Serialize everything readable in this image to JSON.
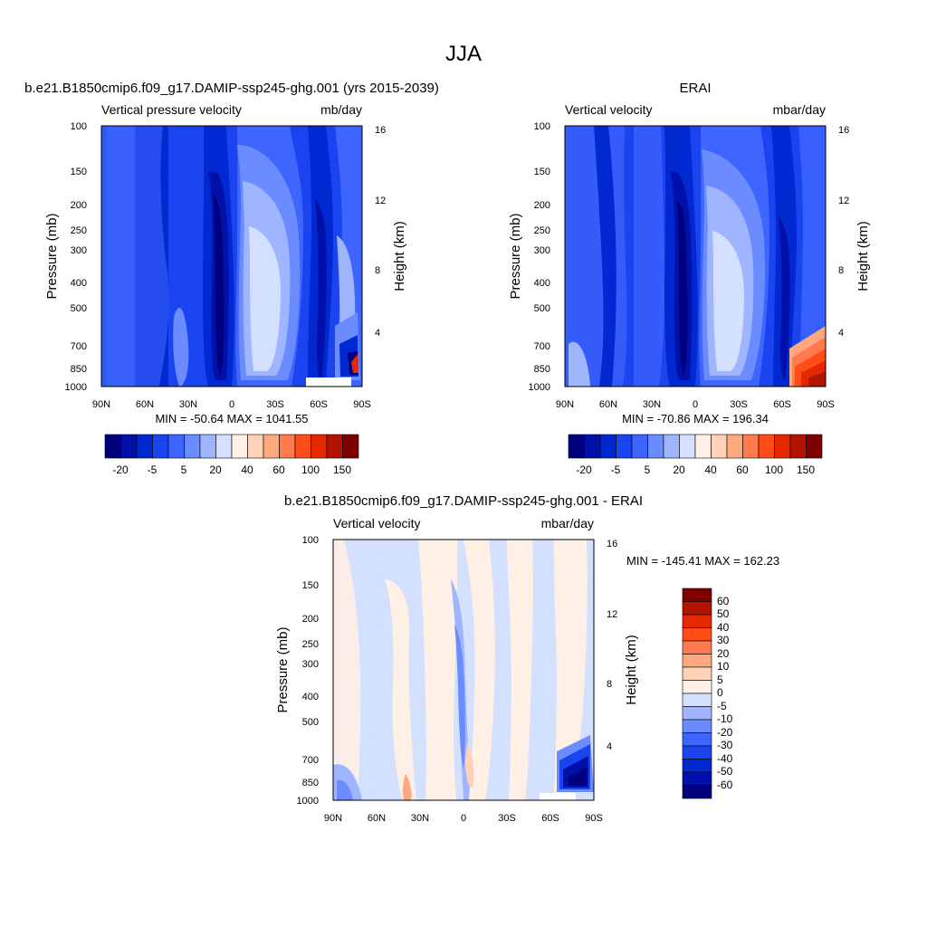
{
  "figure_title": "JJA",
  "chart_data": [
    {
      "type": "heatmap",
      "title": "b.e21.B1850cmip6.f09_g17.DAMIP-ssp245-ghg.001 (yrs 2015-2039)",
      "left_label": "Vertical pressure velocity",
      "right_label": "mb/day",
      "ylabel": "Pressure (mb)",
      "y2label": "Height (km)",
      "x_ticks": [
        "90N",
        "60N",
        "30N",
        "0",
        "30S",
        "60S",
        "90S"
      ],
      "y_ticks": [
        "100",
        "150",
        "200",
        "250",
        "300",
        "400",
        "500",
        "700",
        "850",
        "1000"
      ],
      "y2_ticks": [
        "16",
        "12",
        "8",
        "4"
      ],
      "stats": "MIN = -50.64  MAX = 1041.55",
      "colorbar_labels": [
        "-20",
        "-5",
        "5",
        "20",
        "40",
        "60",
        "100",
        "150"
      ],
      "colorbar_colors": [
        "#00007f",
        "#0010a8",
        "#0029d1",
        "#1a44f0",
        "#3e66ff",
        "#6a8cff",
        "#9fb5ff",
        "#d3e0ff",
        "#fff0e5",
        "#ffd1b8",
        "#ffa880",
        "#ff7a4d",
        "#ff4d1a",
        "#e62800",
        "#b31400",
        "#7f0000"
      ],
      "field_note": "strong negative (blue) minimum near 10N, weaker negative band around 20S, positive values near 70-90S lower levels"
    },
    {
      "type": "heatmap",
      "title": "ERAI",
      "left_label": "Vertical velocity",
      "right_label": "mbar/day",
      "ylabel": "Pressure (mb)",
      "y2label": "Height (km)",
      "x_ticks": [
        "90N",
        "60N",
        "30N",
        "0",
        "30S",
        "60S",
        "90S"
      ],
      "y_ticks": [
        "100",
        "150",
        "200",
        "250",
        "300",
        "400",
        "500",
        "700",
        "850",
        "1000"
      ],
      "y2_ticks": [
        "16",
        "12",
        "8",
        "4"
      ],
      "stats": "MIN = -70.86  MAX = 196.34",
      "colorbar_labels": [
        "-20",
        "-5",
        "5",
        "20",
        "40",
        "60",
        "100",
        "150"
      ],
      "colorbar_colors": [
        "#00007f",
        "#0010a8",
        "#0029d1",
        "#1a44f0",
        "#3e66ff",
        "#6a8cff",
        "#9fb5ff",
        "#d3e0ff",
        "#fff0e5",
        "#ffd1b8",
        "#ffa880",
        "#ff7a4d",
        "#ff4d1a",
        "#e62800",
        "#b31400",
        "#7f0000"
      ]
    },
    {
      "type": "heatmap",
      "title": "b.e21.B1850cmip6.f09_g17.DAMIP-ssp245-ghg.001 - ERAI",
      "left_label": "Vertical velocity",
      "right_label": "mbar/day",
      "ylabel": "Pressure (mb)",
      "y2label": "Height (km)",
      "x_ticks": [
        "90N",
        "60N",
        "30N",
        "0",
        "30S",
        "60S",
        "90S"
      ],
      "y_ticks": [
        "100",
        "150",
        "200",
        "250",
        "300",
        "400",
        "500",
        "700",
        "850",
        "1000"
      ],
      "y2_ticks": [
        "16",
        "12",
        "8",
        "4"
      ],
      "stats": "MIN = -145.41  MAX = 162.23",
      "colorbar_labels": [
        "60",
        "50",
        "40",
        "30",
        "20",
        "10",
        "5",
        "0",
        "-5",
        "-10",
        "-20",
        "-30",
        "-40",
        "-50",
        "-60"
      ],
      "colorbar_colors": [
        "#7f0000",
        "#b31400",
        "#e62800",
        "#ff4d1a",
        "#ff7a4d",
        "#ffa880",
        "#ffd1b8",
        "#fff0e5",
        "#d3e0ff",
        "#9fb5ff",
        "#6a8cff",
        "#3e66ff",
        "#1a44f0",
        "#0029d1",
        "#0010a8",
        "#00007f"
      ]
    }
  ]
}
